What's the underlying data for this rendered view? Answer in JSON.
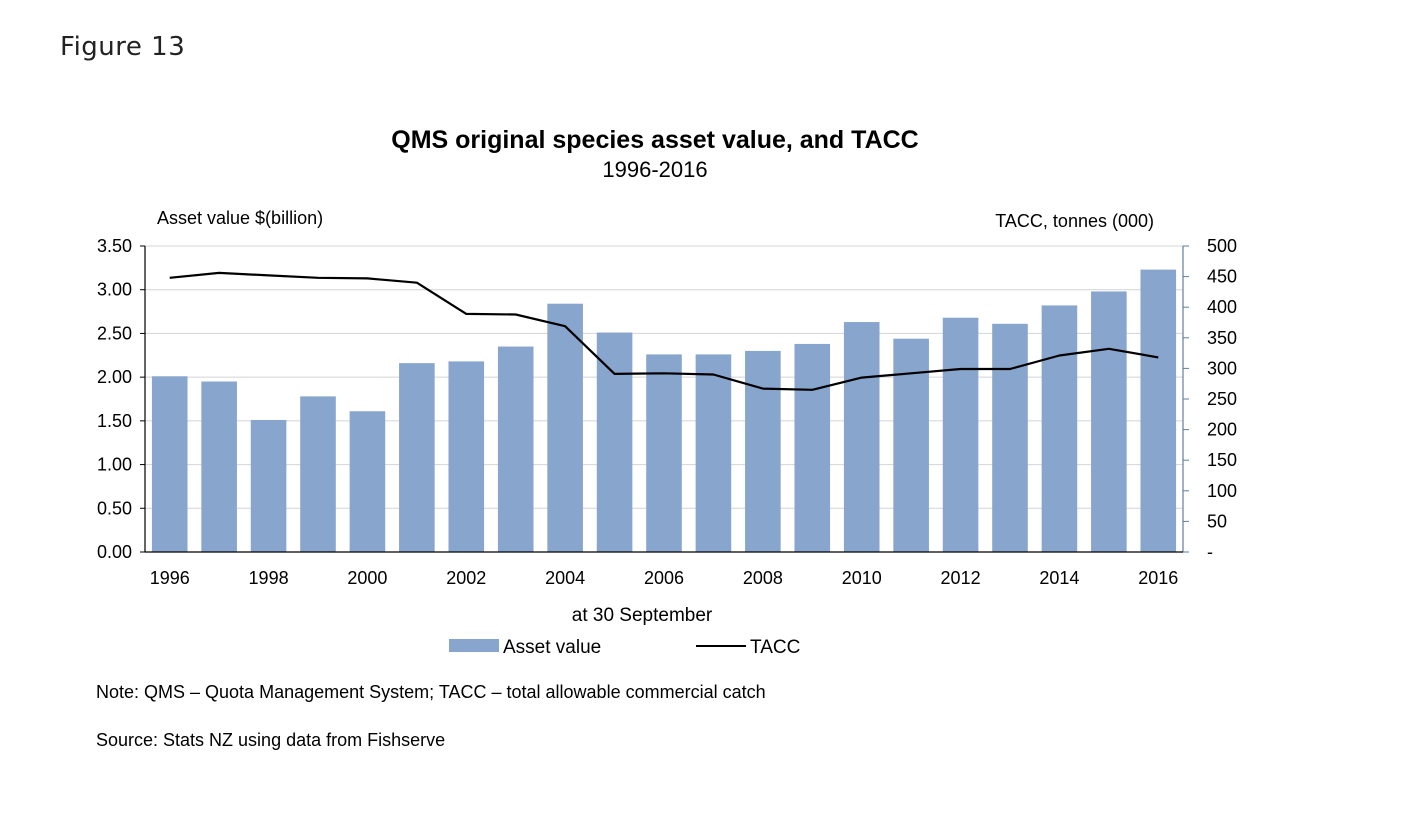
{
  "figure_label": "Figure 13",
  "chart_data": {
    "type": "bar",
    "title": "QMS original species asset value, and TACC",
    "subtitle": "1996-2016",
    "xlabel": "at 30 September",
    "ylabel": "Asset value $(billion)",
    "y2label": "TACC, tonnes (000)",
    "categories": [
      "1996",
      "1997",
      "1998",
      "1999",
      "2000",
      "2001",
      "2002",
      "2003",
      "2004",
      "2005",
      "2006",
      "2007",
      "2008",
      "2009",
      "2010",
      "2011",
      "2012",
      "2013",
      "2014",
      "2015",
      "2016"
    ],
    "x_tick_labels": [
      "1996",
      "",
      "1998",
      "",
      "2000",
      "",
      "2002",
      "",
      "2004",
      "",
      "2006",
      "",
      "2008",
      "",
      "2010",
      "",
      "2012",
      "",
      "2014",
      "",
      "2016"
    ],
    "ylim": [
      0,
      3.5
    ],
    "y_ticks": [
      "0.00",
      "0.50",
      "1.00",
      "1.50",
      "2.00",
      "2.50",
      "3.00",
      "3.50"
    ],
    "y2lim": [
      0,
      500
    ],
    "y2_ticks": [
      "-",
      "50",
      "100",
      "150",
      "200",
      "250",
      "300",
      "350",
      "400",
      "450",
      "500"
    ],
    "grid": true,
    "legend_position": "bottom",
    "series": [
      {
        "name": "Asset value",
        "type": "bar",
        "axis": "left",
        "color": "#87a5cd",
        "values": [
          2.01,
          1.95,
          1.51,
          1.78,
          1.61,
          2.16,
          2.18,
          2.35,
          2.84,
          2.51,
          2.26,
          2.26,
          2.3,
          2.38,
          2.63,
          2.44,
          2.68,
          2.61,
          2.82,
          2.98,
          3.23
        ]
      },
      {
        "name": "TACC",
        "type": "line",
        "axis": "right",
        "color": "#000000",
        "values": [
          448,
          456,
          452,
          448,
          447,
          440,
          389,
          388,
          369,
          291,
          292,
          290,
          267,
          265,
          285,
          292,
          299,
          299,
          321,
          332,
          318
        ]
      }
    ]
  },
  "notes": {
    "note": "Note: QMS – Quota Management System; TACC – total allowable commercial catch",
    "source": "Source: Stats NZ using data from Fishserve"
  }
}
